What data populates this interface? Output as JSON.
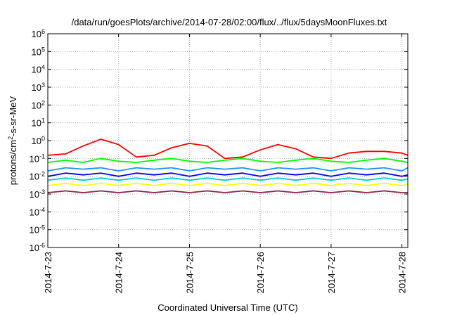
{
  "chart_data": {
    "type": "line",
    "title": "/data/run/goesPlots/archive/2014-07-28/02:00/flux/../flux/5daysMoonFluxes.txt",
    "xlabel": "Coordinated Universal Time (UTC)",
    "ylabel": {
      "pre": "protons/cm",
      "sup": "2",
      "post": "-s-sr-MeV"
    },
    "yscale": "log",
    "ylim": [
      1e-06,
      1000000.0
    ],
    "xlim": [
      "2014-7-23 00:00",
      "2014-7-28 02:00"
    ],
    "grid": true,
    "legend": "none",
    "x_ticks": [
      "2014-7-23",
      "2014-7-24",
      "2014-7-25",
      "2014-7-26",
      "2014-7-27",
      "2014-7-28"
    ],
    "y_ticks": [
      {
        "base": "10",
        "exp": "-6",
        "value": 1e-06
      },
      {
        "base": "10",
        "exp": "-5",
        "value": 1e-05
      },
      {
        "base": "10",
        "exp": "-4",
        "value": 0.0001
      },
      {
        "base": "10",
        "exp": "-3",
        "value": 0.001
      },
      {
        "base": "10",
        "exp": "-2",
        "value": 0.01
      },
      {
        "base": "10",
        "exp": "-1",
        "value": 0.1
      },
      {
        "base": "10",
        "exp": "0",
        "value": 1
      },
      {
        "base": "10",
        "exp": "1",
        "value": 10
      },
      {
        "base": "10",
        "exp": "2",
        "value": 100
      },
      {
        "base": "10",
        "exp": "3",
        "value": 1000
      },
      {
        "base": "10",
        "exp": "4",
        "value": 10000
      },
      {
        "base": "10",
        "exp": "5",
        "value": 100000
      },
      {
        "base": "10",
        "exp": "6",
        "value": 1000000
      }
    ],
    "x": [
      "2014-7-23 00:00",
      "2014-7-23 06:00",
      "2014-7-23 12:00",
      "2014-7-23 18:00",
      "2014-7-24 00:00",
      "2014-7-24 06:00",
      "2014-7-24 12:00",
      "2014-7-24 18:00",
      "2014-7-25 00:00",
      "2014-7-25 06:00",
      "2014-7-25 12:00",
      "2014-7-25 18:00",
      "2014-7-26 00:00",
      "2014-7-26 06:00",
      "2014-7-26 12:00",
      "2014-7-26 18:00",
      "2014-7-27 00:00",
      "2014-7-27 06:00",
      "2014-7-27 12:00",
      "2014-7-27 18:00",
      "2014-7-28 00:00",
      "2014-7-28 02:00"
    ],
    "series": [
      {
        "color": "#ff0000",
        "values": [
          0.15,
          0.18,
          0.5,
          1.2,
          0.6,
          0.12,
          0.15,
          0.4,
          0.7,
          0.5,
          0.1,
          0.12,
          0.3,
          0.6,
          0.35,
          0.12,
          0.1,
          0.2,
          0.25,
          0.25,
          0.2,
          0.15
        ]
      },
      {
        "color": "#00ff00",
        "values": [
          0.06,
          0.08,
          0.06,
          0.1,
          0.07,
          0.06,
          0.08,
          0.1,
          0.07,
          0.06,
          0.08,
          0.1,
          0.07,
          0.06,
          0.08,
          0.1,
          0.07,
          0.06,
          0.08,
          0.1,
          0.07,
          0.06
        ]
      },
      {
        "color": "#1e90ff",
        "values": [
          0.02,
          0.03,
          0.025,
          0.03,
          0.02,
          0.03,
          0.025,
          0.03,
          0.02,
          0.03,
          0.025,
          0.03,
          0.02,
          0.03,
          0.025,
          0.03,
          0.02,
          0.03,
          0.025,
          0.03,
          0.02,
          0.03
        ]
      },
      {
        "color": "#0000ff",
        "values": [
          0.01,
          0.015,
          0.012,
          0.015,
          0.01,
          0.015,
          0.012,
          0.015,
          0.01,
          0.015,
          0.012,
          0.015,
          0.01,
          0.015,
          0.012,
          0.015,
          0.01,
          0.015,
          0.012,
          0.015,
          0.01,
          0.012
        ]
      },
      {
        "color": "#00ced1",
        "values": [
          0.006,
          0.008,
          0.006,
          0.008,
          0.006,
          0.008,
          0.006,
          0.008,
          0.006,
          0.008,
          0.006,
          0.008,
          0.006,
          0.008,
          0.006,
          0.008,
          0.006,
          0.008,
          0.006,
          0.008,
          0.006,
          0.007
        ]
      },
      {
        "color": "#ffff00",
        "values": [
          0.003,
          0.004,
          0.003,
          0.004,
          0.003,
          0.004,
          0.003,
          0.004,
          0.003,
          0.004,
          0.003,
          0.004,
          0.003,
          0.004,
          0.003,
          0.004,
          0.003,
          0.004,
          0.003,
          0.004,
          0.003,
          0.0035
        ]
      },
      {
        "color": "#8b2252",
        "values": [
          0.0012,
          0.0015,
          0.0012,
          0.0015,
          0.0012,
          0.0015,
          0.0012,
          0.0015,
          0.0012,
          0.0015,
          0.0012,
          0.0015,
          0.0012,
          0.0015,
          0.0012,
          0.0015,
          0.0012,
          0.0015,
          0.0012,
          0.0015,
          0.0012,
          0.0012
        ]
      }
    ]
  }
}
